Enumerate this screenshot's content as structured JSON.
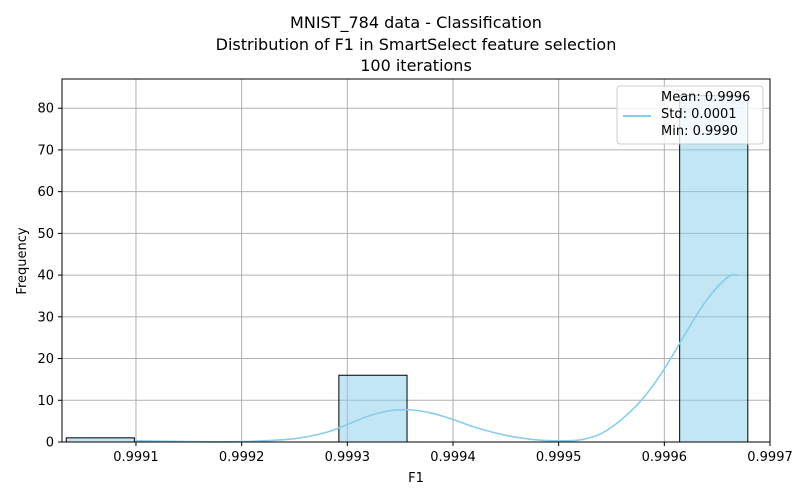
{
  "chart_data": {
    "type": "bar",
    "title_lines": [
      "MNIST_784 data - Classification",
      "Distribution of F1 in SmartSelect feature selection",
      "100 iterations"
    ],
    "xlabel": "F1",
    "ylabel": "Frequency",
    "xlim": [
      0.99903,
      0.9997
    ],
    "ylim": [
      0,
      87
    ],
    "x_ticks": [
      0.9991,
      0.9992,
      0.9993,
      0.9994,
      0.9995,
      0.9996,
      0.9997
    ],
    "x_tick_labels": [
      "0.9991",
      "0.9992",
      "0.9993",
      "0.9994",
      "0.9995",
      "0.9996",
      "0.9997"
    ],
    "y_ticks": [
      0,
      10,
      20,
      30,
      40,
      50,
      60,
      70,
      80
    ],
    "y_tick_labels": [
      "0",
      "10",
      "20",
      "30",
      "40",
      "50",
      "60",
      "70",
      "80"
    ],
    "grid": true,
    "histogram": {
      "bin_start": 0.999034,
      "bin_width": 6.45e-05,
      "counts": [
        1,
        0,
        0,
        0,
        16,
        0,
        0,
        0,
        0,
        83
      ],
      "color": "#87CEEB",
      "edge_color": "#000000"
    },
    "kde": {
      "color": "#87CEEB",
      "x": [
        0.9991,
        0.99915,
        0.9992,
        0.99925,
        0.99928,
        0.9993,
        0.99932,
        0.99934,
        0.99936,
        0.99938,
        0.9994,
        0.99942,
        0.99945,
        0.99948,
        0.9995,
        0.99952,
        0.99954,
        0.99956,
        0.99958,
        0.9996,
        0.99962,
        0.99964,
        0.99966,
        0.99967
      ],
      "y": [
        0.3,
        0.1,
        0.1,
        0.8,
        2.3,
        4.2,
        6.2,
        7.5,
        7.7,
        6.9,
        5.4,
        3.6,
        1.6,
        0.5,
        0.3,
        0.5,
        2.0,
        5.5,
        10.5,
        17.5,
        26.0,
        34.0,
        39.5,
        40.0
      ]
    },
    "legend": {
      "position": "top-right",
      "entries": [
        "Mean: 0.9996",
        "Std: 0.0001",
        "Min: 0.9990"
      ],
      "line_color": "#87CEEB"
    }
  }
}
